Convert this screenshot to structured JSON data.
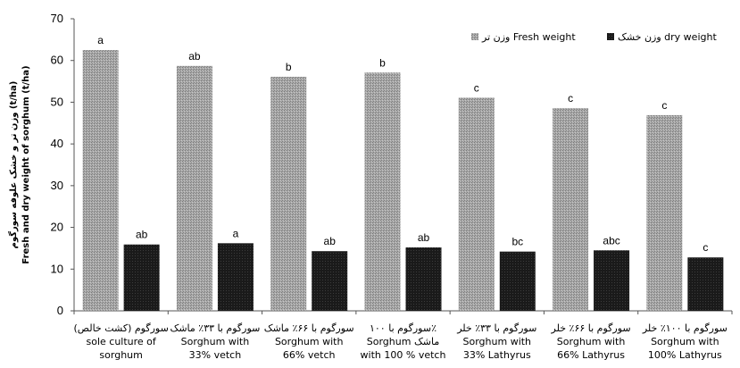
{
  "chart_data": {
    "type": "bar",
    "ylabel_lines": [
      "وزن تر و خشک علوفه سورگوم (t/ha)",
      "Fresh and dry weight of sorghum (t/ha)"
    ],
    "ylim": [
      0,
      70
    ],
    "yticks": [
      0,
      10,
      20,
      30,
      40,
      50,
      60,
      70
    ],
    "grid": false,
    "legend_position": "top-right",
    "categories": [
      {
        "lines": [
          "سورگوم (کشت خالص)",
          "sole culture of",
          "sorghum"
        ]
      },
      {
        "lines": [
          "سورگوم با ۳۳٪ ماشک",
          "Sorghum with",
          "33% vetch"
        ]
      },
      {
        "lines": [
          "سورگوم با ۶۶٪ ماشک",
          "Sorghum with",
          "66% vetch"
        ]
      },
      {
        "lines": [
          "سورگوم با ۱۰۰٪",
          "Sorghum  ماشک",
          "with 100 % vetch"
        ]
      },
      {
        "lines": [
          "سورگوم با ۳۳٪ خلر",
          "Sorghum with",
          "33% Lathyrus"
        ]
      },
      {
        "lines": [
          "سورگوم با ۶۶٪ خلر",
          "Sorghum with",
          "66% Lathyrus"
        ]
      },
      {
        "lines": [
          "سورگوم با ۱۰۰٪ خلر",
          "Sorghum with",
          "100% Lathyrus"
        ]
      }
    ],
    "series": [
      {
        "name": "وزن تر Fresh weight",
        "color": "#9a9a9a",
        "values": [
          62.5,
          58.7,
          56.1,
          57.1,
          51.1,
          48.6,
          46.9
        ],
        "labels": [
          "a",
          "ab",
          "b",
          "b",
          "c",
          "c",
          "c"
        ]
      },
      {
        "name": "وزن خشک dry weight",
        "color": "#111111",
        "values": [
          15.9,
          16.2,
          14.3,
          15.2,
          14.2,
          14.5,
          12.8
        ],
        "labels": [
          "ab",
          "a",
          "ab",
          "ab",
          "bc",
          "abc",
          "c"
        ]
      }
    ]
  }
}
